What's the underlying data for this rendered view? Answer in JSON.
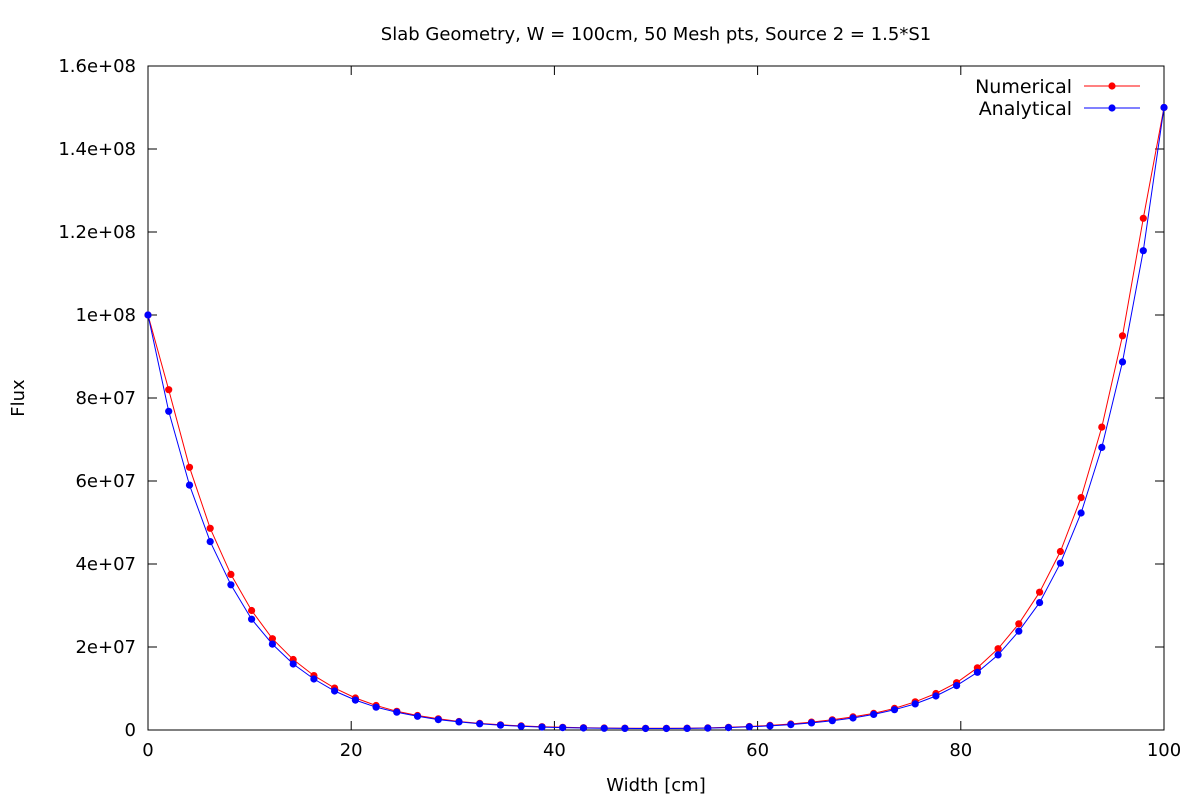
{
  "chart_data": {
    "type": "line",
    "title": "Slab Geometry, W = 100cm, 50 Mesh pts, Source 2 = 1.5*S1",
    "xlabel": "Width [cm]",
    "ylabel": "Flux",
    "xlim": [
      0,
      100
    ],
    "ylim": [
      0,
      160000000
    ],
    "x_ticks": [
      0,
      20,
      40,
      60,
      80,
      100
    ],
    "x_tick_labels": [
      "0",
      "20",
      "40",
      "60",
      "80",
      "100"
    ],
    "y_ticks": [
      0,
      20000000,
      40000000,
      60000000,
      80000000,
      100000000,
      120000000,
      140000000,
      160000000
    ],
    "y_tick_labels": [
      "0",
      "2e+07",
      "4e+07",
      "6e+07",
      "8e+07",
      "1e+08",
      "1.2e+08",
      "1.4e+08",
      "1.6e+08"
    ],
    "grid": false,
    "legend_position": "top-right",
    "x": [
      0,
      2.04,
      4.08,
      6.12,
      8.16,
      10.2,
      12.24,
      14.29,
      16.33,
      18.37,
      20.41,
      22.45,
      24.49,
      26.53,
      28.57,
      30.61,
      32.65,
      34.69,
      36.73,
      38.78,
      40.82,
      42.86,
      44.9,
      46.94,
      48.98,
      51.02,
      53.06,
      55.1,
      57.14,
      59.18,
      61.22,
      63.27,
      65.31,
      67.35,
      69.39,
      71.43,
      73.47,
      75.51,
      77.55,
      79.59,
      81.63,
      83.67,
      85.71,
      87.76,
      89.8,
      91.84,
      93.88,
      95.92,
      97.96,
      100
    ],
    "series": [
      {
        "name": "Numerical",
        "color": "#ff0000",
        "values": [
          100000000,
          82000000,
          63300000,
          48600000,
          37500000,
          28800000,
          22000000,
          17000000,
          13100000,
          10100000,
          7700000,
          5900000,
          4500000,
          3500000,
          2700000,
          2050000,
          1600000,
          1250000,
          1000000,
          800000,
          650000,
          550000,
          480000,
          430000,
          400000,
          400000,
          430000,
          500000,
          650000,
          850000,
          1100000,
          1450000,
          1900000,
          2450000,
          3150000,
          4000000,
          5200000,
          6800000,
          8800000,
          11400000,
          15000000,
          19600000,
          25600000,
          33200000,
          43000000,
          56000000,
          73000000,
          95000000,
          123300000,
          150000000
        ]
      },
      {
        "name": "Analytical",
        "color": "#0000ff",
        "values": [
          100000000,
          76800000,
          59000000,
          45400000,
          35000000,
          26700000,
          20700000,
          15900000,
          12300000,
          9400000,
          7200000,
          5500000,
          4300000,
          3300000,
          2500000,
          1950000,
          1500000,
          1150000,
          900000,
          700000,
          580000,
          480000,
          420000,
          380000,
          360000,
          360000,
          390000,
          460000,
          580000,
          760000,
          1000000,
          1300000,
          1700000,
          2250000,
          2900000,
          3750000,
          4900000,
          6300000,
          8200000,
          10700000,
          13900000,
          18100000,
          23800000,
          30700000,
          40200000,
          52300000,
          68100000,
          88700000,
          115500000,
          150000000
        ]
      }
    ]
  }
}
